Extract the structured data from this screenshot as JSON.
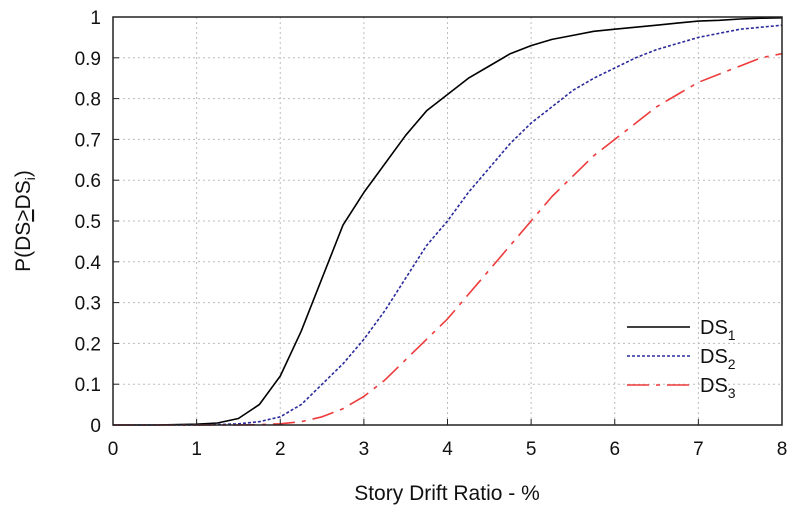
{
  "chart_data": {
    "type": "line",
    "title": "",
    "xlabel": "Story Drift Ratio - %",
    "ylabel": "P(DS≥DSi)",
    "xlim": [
      0,
      8
    ],
    "ylim": [
      0,
      1
    ],
    "x_ticks": [
      0,
      1,
      2,
      3,
      4,
      5,
      6,
      7,
      8
    ],
    "x_tick_labels": [
      "0",
      "1",
      "2",
      "3",
      "4",
      "5",
      "6",
      "7",
      "8"
    ],
    "y_ticks": [
      0,
      0.1,
      0.2,
      0.3,
      0.4,
      0.5,
      0.6,
      0.7,
      0.8,
      0.9,
      1
    ],
    "y_tick_labels": [
      "0",
      "0.1",
      "0.2",
      "0.3",
      "0.4",
      "0.5",
      "0.6",
      "0.7",
      "0.8",
      "0.9",
      "1"
    ],
    "grid": true,
    "legend_position": "bottom-right",
    "x": [
      0,
      0.5,
      1,
      1.25,
      1.5,
      1.75,
      2,
      2.25,
      2.5,
      2.75,
      3,
      3.25,
      3.5,
      3.75,
      4,
      4.25,
      4.5,
      4.75,
      5,
      5.25,
      5.5,
      5.75,
      6,
      6.25,
      6.5,
      6.75,
      7,
      7.25,
      7.5,
      7.75,
      8
    ],
    "series": [
      {
        "name": "DS1",
        "label_main": "DS",
        "label_sub": "1",
        "color": "#000000",
        "dash": "solid",
        "values": [
          0,
          0,
          0.002,
          0.005,
          0.016,
          0.05,
          0.12,
          0.23,
          0.36,
          0.49,
          0.57,
          0.64,
          0.71,
          0.77,
          0.81,
          0.85,
          0.88,
          0.91,
          0.93,
          0.945,
          0.955,
          0.965,
          0.97,
          0.975,
          0.98,
          0.985,
          0.99,
          0.992,
          0.995,
          0.997,
          0.998
        ]
      },
      {
        "name": "DS2",
        "label_main": "DS",
        "label_sub": "2",
        "color": "#2a2a9c",
        "dash": "dotted",
        "values": [
          0,
          0,
          0,
          0.001,
          0.003,
          0.008,
          0.02,
          0.05,
          0.1,
          0.15,
          0.21,
          0.28,
          0.36,
          0.44,
          0.5,
          0.57,
          0.63,
          0.69,
          0.74,
          0.78,
          0.82,
          0.85,
          0.875,
          0.9,
          0.92,
          0.935,
          0.95,
          0.96,
          0.97,
          0.975,
          0.98
        ]
      },
      {
        "name": "DS3",
        "label_main": "DS",
        "label_sub": "3",
        "color": "#ee3b3b",
        "dash": "longdash",
        "values": [
          0,
          0,
          0,
          0,
          0,
          0.001,
          0.003,
          0.008,
          0.02,
          0.04,
          0.07,
          0.11,
          0.16,
          0.21,
          0.26,
          0.32,
          0.38,
          0.44,
          0.5,
          0.56,
          0.61,
          0.66,
          0.7,
          0.74,
          0.78,
          0.81,
          0.84,
          0.86,
          0.88,
          0.9,
          0.91
        ]
      }
    ]
  }
}
